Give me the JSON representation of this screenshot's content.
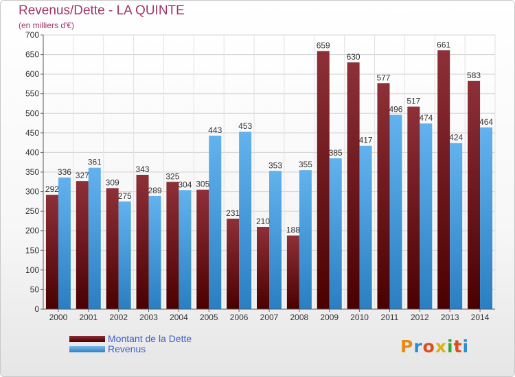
{
  "header": {
    "title": "Revenus/Dette - LA QUINTE",
    "subtitle": "(en milliers d'€)"
  },
  "legend": {
    "dette_label": "Montant de la Dette",
    "revenus_label": "Revenus"
  },
  "logo": {
    "text": "Proxiti"
  },
  "colors": {
    "dette": "#7a1f26",
    "revenus": "#4aa3e4",
    "title": "#a2336a",
    "legend_text": "#3c5fc8"
  },
  "chart_data": {
    "type": "bar",
    "title": "Revenus/Dette - LA QUINTE",
    "subtitle": "(en milliers d'€)",
    "categories": [
      "2000",
      "2001",
      "2002",
      "2003",
      "2004",
      "2005",
      "2006",
      "2007",
      "2008",
      "2009",
      "2010",
      "2011",
      "2012",
      "2013",
      "2014"
    ],
    "series": [
      {
        "name": "Montant de la Dette",
        "values": [
          292,
          327,
          309,
          343,
          325,
          305,
          231,
          210,
          188,
          659,
          630,
          577,
          517,
          661,
          583
        ]
      },
      {
        "name": "Revenus",
        "values": [
          336,
          361,
          275,
          289,
          304,
          443,
          453,
          353,
          355,
          385,
          417,
          496,
          474,
          424,
          464
        ]
      }
    ],
    "ylim": [
      0,
      700
    ],
    "yticks": [
      0,
      50,
      100,
      150,
      200,
      250,
      300,
      350,
      400,
      450,
      500,
      550,
      600,
      650,
      700
    ],
    "grid": true,
    "legend_position": "bottom-left"
  }
}
